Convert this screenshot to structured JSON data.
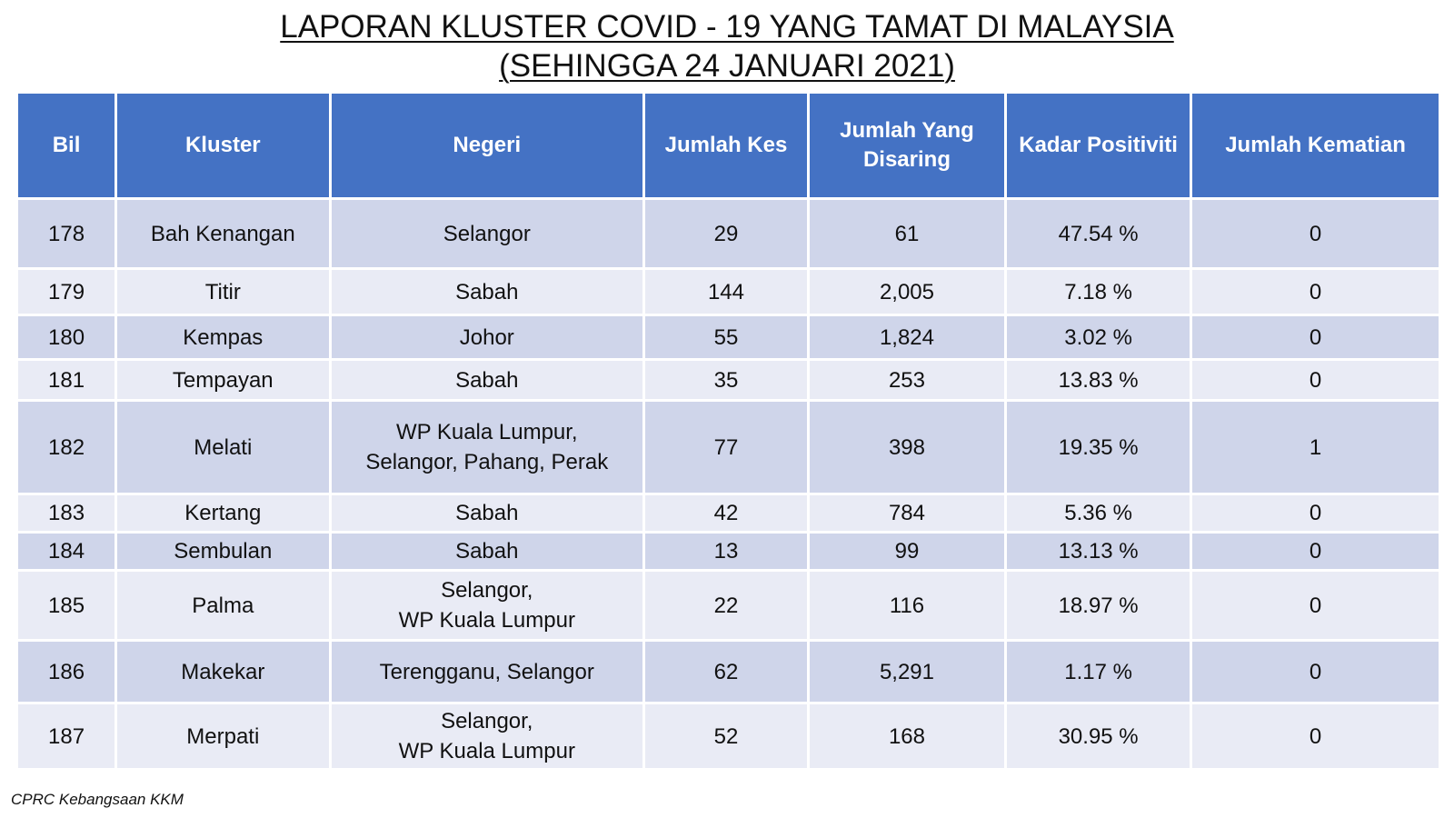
{
  "title": {
    "line1": "LAPORAN KLUSTER COVID - 19 YANG TAMAT DI MALAYSIA",
    "line2": "(SEHINGGA 24 JANUARI 2021)"
  },
  "table": {
    "headers": [
      "Bil",
      "Kluster",
      "Negeri",
      "Jumlah Kes",
      "Jumlah Yang Disaring",
      "Kadar Positiviti",
      "Jumlah Kematian"
    ],
    "rows": [
      {
        "bil": "178",
        "kluster": "Bah Kenangan",
        "negeri_line1": "Selangor",
        "negeri_line2": "",
        "kes": "29",
        "disaring": "61",
        "positiviti": "47.54 %",
        "kematian": "0"
      },
      {
        "bil": "179",
        "kluster": "Titir",
        "negeri_line1": "Sabah",
        "negeri_line2": "",
        "kes": "144",
        "disaring": "2,005",
        "positiviti": "7.18 %",
        "kematian": "0"
      },
      {
        "bil": "180",
        "kluster": "Kempas",
        "negeri_line1": "Johor",
        "negeri_line2": "",
        "kes": "55",
        "disaring": "1,824",
        "positiviti": "3.02 %",
        "kematian": "0"
      },
      {
        "bil": "181",
        "kluster": "Tempayan",
        "negeri_line1": "Sabah",
        "negeri_line2": "",
        "kes": "35",
        "disaring": "253",
        "positiviti": "13.83 %",
        "kematian": "0"
      },
      {
        "bil": "182",
        "kluster": "Melati",
        "negeri_line1": "WP Kuala Lumpur,",
        "negeri_line2": "Selangor, Pahang, Perak",
        "kes": "77",
        "disaring": "398",
        "positiviti": "19.35 %",
        "kematian": "1"
      },
      {
        "bil": "183",
        "kluster": "Kertang",
        "negeri_line1": "Sabah",
        "negeri_line2": "",
        "kes": "42",
        "disaring": "784",
        "positiviti": "5.36 %",
        "kematian": "0"
      },
      {
        "bil": "184",
        "kluster": "Sembulan",
        "negeri_line1": "Sabah",
        "negeri_line2": "",
        "kes": "13",
        "disaring": "99",
        "positiviti": "13.13 %",
        "kematian": "0"
      },
      {
        "bil": "185",
        "kluster": "Palma",
        "negeri_line1": "Selangor,",
        "negeri_line2": "WP Kuala Lumpur",
        "kes": "22",
        "disaring": "116",
        "positiviti": "18.97 %",
        "kematian": "0"
      },
      {
        "bil": "186",
        "kluster": "Makekar",
        "negeri_line1": "Terengganu, Selangor",
        "negeri_line2": "",
        "kes": "62",
        "disaring": "5,291",
        "positiviti": "1.17 %",
        "kematian": "0"
      },
      {
        "bil": "187",
        "kluster": "Merpati",
        "negeri_line1": "Selangor,",
        "negeri_line2": "WP Kuala Lumpur",
        "kes": "52",
        "disaring": "168",
        "positiviti": "30.95 %",
        "kematian": "0"
      }
    ]
  },
  "source": "CPRC Kebangsaan KKM",
  "colors": {
    "header_bg": "#4472c4",
    "row_odd": "#cfd5ea",
    "row_even": "#e9ebf5"
  }
}
